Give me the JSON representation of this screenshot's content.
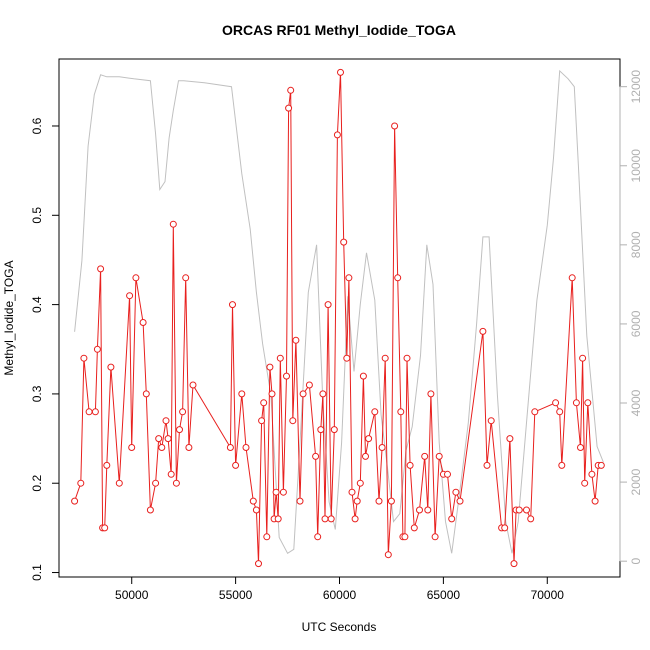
{
  "chart_data": {
    "type": "line",
    "title": "ORCAS RF01 Methyl_Iodide_TOGA",
    "xlabel": "UTC Seconds",
    "ylabel": "Methyl_Iodide_TOGA",
    "xlim": [
      46500,
      73500
    ],
    "ylim": [
      0.095,
      0.675
    ],
    "y2lim": [
      -400,
      12700
    ],
    "x_ticks": [
      50000,
      55000,
      60000,
      65000,
      70000
    ],
    "x_tick_labels": [
      "50000",
      "55000",
      "60000",
      "65000",
      "70000"
    ],
    "y_ticks": [
      0.1,
      0.2,
      0.3,
      0.4,
      0.5,
      0.6
    ],
    "y_tick_labels": [
      "0.1",
      "0.2",
      "0.3",
      "0.4",
      "0.5",
      "0.6"
    ],
    "y2_ticks": [
      0,
      2000,
      4000,
      6000,
      8000,
      10000,
      12000
    ],
    "y2_tick_labels": [
      "0",
      "2000",
      "4000",
      "6000",
      "8000",
      "10000",
      "12000"
    ],
    "grid": false,
    "series": [
      {
        "color": "#e8201e",
        "axis": "left",
        "markers": "open-circle",
        "x": [
          47250,
          47550,
          47700,
          47950,
          48250,
          48350,
          48500,
          48600,
          48700,
          48800,
          49000,
          49400,
          49900,
          50000,
          50200,
          50550,
          50700,
          50900,
          51150,
          51300,
          51450,
          51650,
          51750,
          51900,
          52000,
          52150,
          52300,
          52450,
          52600,
          52750,
          52950,
          54750,
          54850,
          55000,
          55300,
          55500,
          55850,
          56000,
          56100,
          56250,
          56350,
          56500,
          56650,
          56750,
          56850,
          56950,
          57050,
          57150,
          57300,
          57450,
          57550,
          57650,
          57750,
          57900,
          58100,
          58250,
          58550,
          58850,
          58950,
          59100,
          59200,
          59300,
          59450,
          59600,
          59750,
          59900,
          60050,
          60200,
          60350,
          60450,
          60600,
          60750,
          60850,
          61000,
          61150,
          61250,
          61400,
          61700,
          61900,
          62050,
          62200,
          62350,
          62500,
          62650,
          62800,
          62950,
          63050,
          63150,
          63250,
          63400,
          63600,
          63850,
          64100,
          64250,
          64400,
          64600,
          64800,
          65000,
          65200,
          65400,
          65600,
          65800,
          66900,
          67100,
          67300,
          67800,
          67950,
          68200,
          68400,
          68500,
          68650,
          69000,
          69200,
          69400,
          70400,
          70600,
          70700,
          71200,
          71400,
          71600,
          71700,
          71800,
          71950,
          72150,
          72300,
          72450,
          72600
        ],
        "y": [
          0.18,
          0.2,
          0.34,
          0.28,
          0.28,
          0.35,
          0.44,
          0.15,
          0.15,
          0.22,
          0.33,
          0.2,
          0.41,
          0.24,
          0.43,
          0.38,
          0.3,
          0.17,
          0.2,
          0.25,
          0.24,
          0.27,
          0.25,
          0.21,
          0.49,
          0.2,
          0.26,
          0.28,
          0.43,
          0.24,
          0.31,
          0.24,
          0.4,
          0.22,
          0.3,
          0.24,
          0.18,
          0.17,
          0.11,
          0.27,
          0.29,
          0.14,
          0.33,
          0.3,
          0.16,
          0.19,
          0.16,
          0.34,
          0.19,
          0.32,
          0.62,
          0.64,
          0.27,
          0.36,
          0.18,
          0.3,
          0.31,
          0.23,
          0.14,
          0.26,
          0.3,
          0.16,
          0.4,
          0.16,
          0.26,
          0.59,
          0.66,
          0.47,
          0.34,
          0.43,
          0.19,
          0.16,
          0.18,
          0.2,
          0.32,
          0.23,
          0.25,
          0.28,
          0.18,
          0.24,
          0.34,
          0.12,
          0.18,
          0.6,
          0.43,
          0.28,
          0.14,
          0.14,
          0.34,
          0.22,
          0.15,
          0.17,
          0.23,
          0.17,
          0.3,
          0.14,
          0.23,
          0.21,
          0.21,
          0.16,
          0.19,
          0.18,
          0.37,
          0.22,
          0.27,
          0.15,
          0.15,
          0.25,
          0.11,
          0.17,
          0.17,
          0.17,
          0.16,
          0.28,
          0.29,
          0.28,
          0.22,
          0.43,
          0.29,
          0.24,
          0.34,
          0.2,
          0.29,
          0.21,
          0.18,
          0.22,
          0.22
        ]
      },
      {
        "color": "#c0c0c0",
        "axis": "right",
        "markers": "none",
        "x": [
          47250,
          47600,
          47900,
          48200,
          48500,
          48800,
          49400,
          50100,
          50900,
          51150,
          51350,
          51600,
          51800,
          52000,
          52250,
          52500,
          53500,
          54800,
          55300,
          55700,
          56000,
          56300,
          56700,
          57100,
          57500,
          57800,
          58100,
          58500,
          58900,
          59200,
          59500,
          59800,
          60100,
          60400,
          60700,
          61000,
          61300,
          61700,
          62000,
          62300,
          62600,
          62900,
          63200,
          63500,
          63900,
          64200,
          64500,
          64800,
          65100,
          65400,
          65800,
          66200,
          66600,
          66900,
          67200,
          67600,
          68000,
          68300,
          68600,
          69000,
          69500,
          70000,
          70300,
          70600,
          71000,
          71300,
          71500,
          71900,
          72400,
          72700
        ],
        "y": [
          5800,
          7600,
          10500,
          11800,
          12300,
          12250,
          12250,
          12200,
          12150,
          10800,
          9400,
          9600,
          10700,
          11400,
          12150,
          12150,
          12100,
          12000,
          9800,
          8400,
          6800,
          5500,
          4200,
          600,
          200,
          300,
          3000,
          6800,
          8000,
          4000,
          1500,
          800,
          3000,
          6700,
          4800,
          6500,
          7800,
          6600,
          3700,
          2400,
          1000,
          1200,
          2800,
          3400,
          5200,
          8000,
          7000,
          3000,
          1000,
          200,
          1800,
          3500,
          6000,
          8200,
          8200,
          4200,
          1000,
          200,
          1000,
          3500,
          6600,
          8500,
          10200,
          12400,
          12200,
          12000,
          10000,
          5700,
          2900,
          2500
        ]
      }
    ]
  }
}
